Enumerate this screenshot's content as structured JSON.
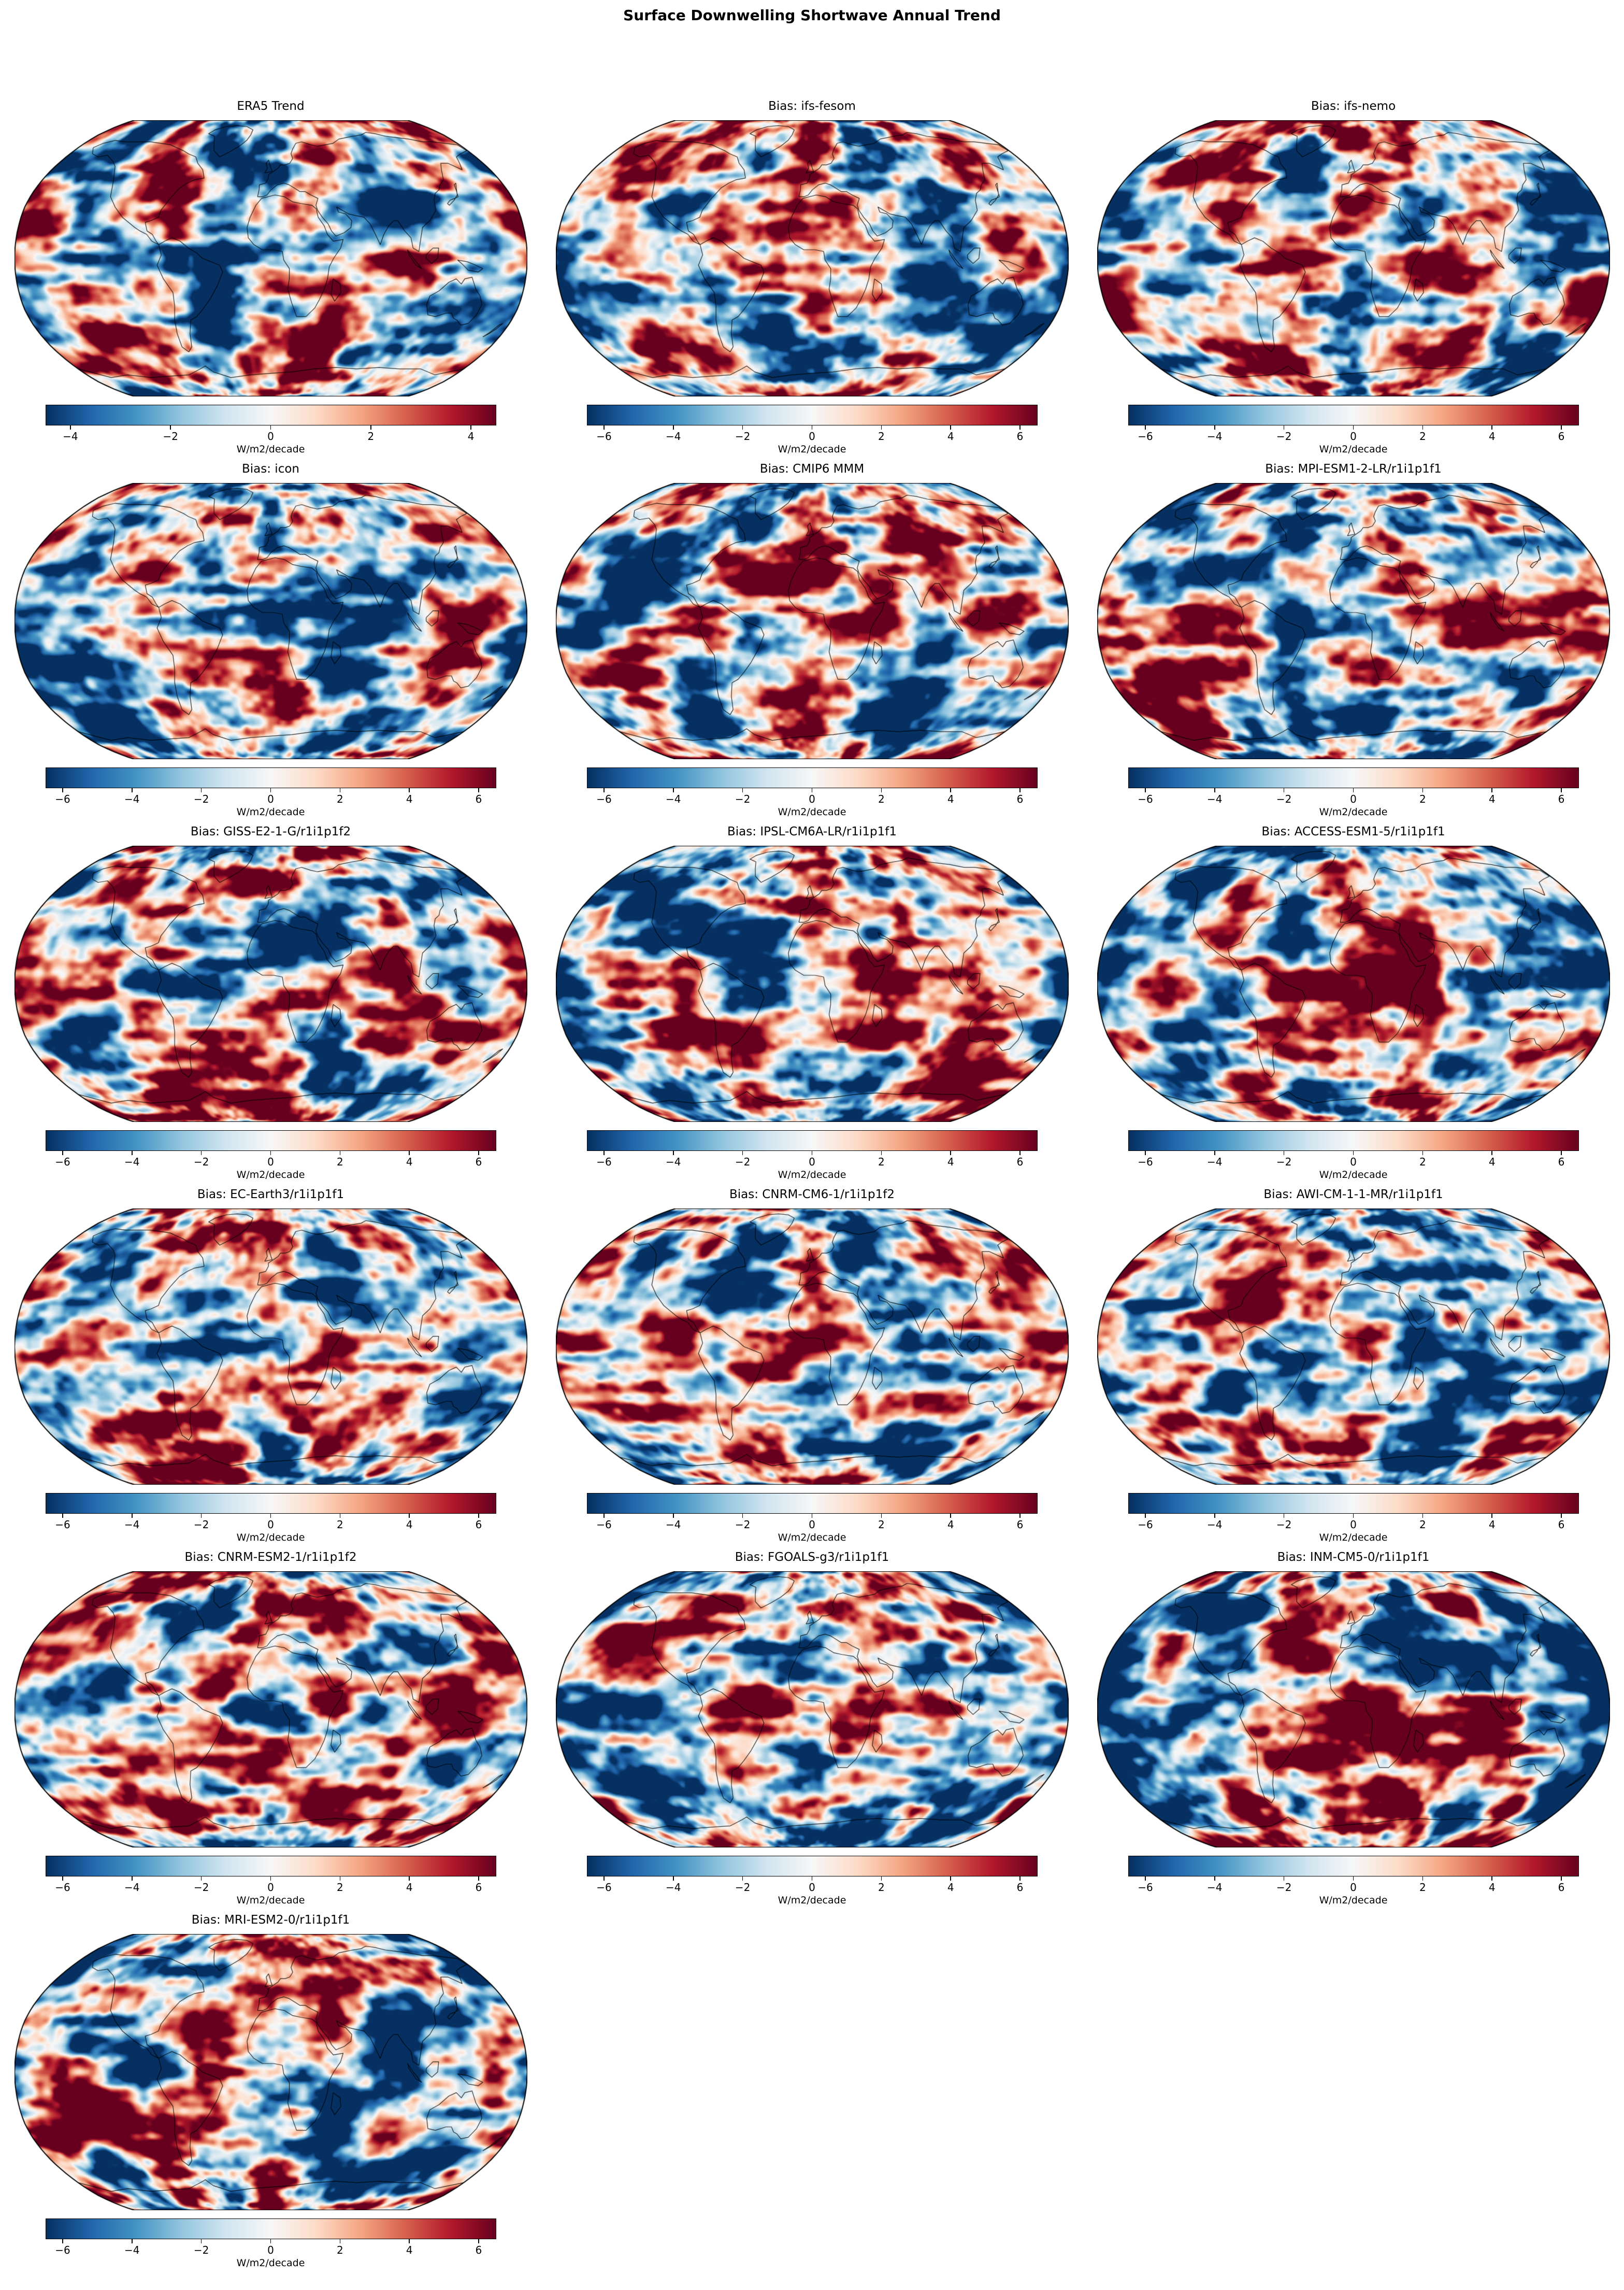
{
  "figure": {
    "title": "Surface Downwelling Shortwave Annual Trend"
  },
  "colorbar": {
    "label": "W/m2/decade",
    "colormap": "RdBu_r",
    "stops": [
      "#053061",
      "#2166ac",
      "#4393c3",
      "#92c5de",
      "#d1e5f0",
      "#f7f7f7",
      "#fddbc7",
      "#f4a582",
      "#d6604d",
      "#b2182b",
      "#67001f"
    ]
  },
  "chart_data": {
    "type": "heatmap",
    "subtype": "global-map-small-multiples",
    "projection": "Robinson",
    "title": "Surface Downwelling Shortwave Annual Trend",
    "units": "W/m2/decade",
    "colormap": "RdBu_r",
    "grid": {
      "rows": 6,
      "cols": 3,
      "panels_in_last_row": 1
    },
    "legend_position": "below-each-panel",
    "panels": [
      {
        "title": "ERA5 Trend",
        "vmin": -4.5,
        "vmax": 4.5,
        "ticks": [
          -4,
          -2,
          0,
          2,
          4
        ],
        "tick_labels": [
          "−4",
          "−2",
          "0",
          "2",
          "4"
        ]
      },
      {
        "title": "Bias: ifs-fesom",
        "vmin": -6.5,
        "vmax": 6.5,
        "ticks": [
          -6,
          -4,
          -2,
          0,
          2,
          4,
          6
        ],
        "tick_labels": [
          "−6",
          "−4",
          "−2",
          "0",
          "2",
          "4",
          "6"
        ]
      },
      {
        "title": "Bias: ifs-nemo",
        "vmin": -6.5,
        "vmax": 6.5,
        "ticks": [
          -6,
          -4,
          -2,
          0,
          2,
          4,
          6
        ],
        "tick_labels": [
          "−6",
          "−4",
          "−2",
          "0",
          "2",
          "4",
          "6"
        ]
      },
      {
        "title": "Bias: icon",
        "vmin": -6.5,
        "vmax": 6.5,
        "ticks": [
          -6,
          -4,
          -2,
          0,
          2,
          4,
          6
        ],
        "tick_labels": [
          "−6",
          "−4",
          "−2",
          "0",
          "2",
          "4",
          "6"
        ]
      },
      {
        "title": "Bias: CMIP6 MMM",
        "vmin": -6.5,
        "vmax": 6.5,
        "ticks": [
          -6,
          -4,
          -2,
          0,
          2,
          4,
          6
        ],
        "tick_labels": [
          "−6",
          "−4",
          "−2",
          "0",
          "2",
          "4",
          "6"
        ]
      },
      {
        "title": "Bias: MPI-ESM1-2-LR/r1i1p1f1",
        "vmin": -6.5,
        "vmax": 6.5,
        "ticks": [
          -6,
          -4,
          -2,
          0,
          2,
          4,
          6
        ],
        "tick_labels": [
          "−6",
          "−4",
          "−2",
          "0",
          "2",
          "4",
          "6"
        ]
      },
      {
        "title": "Bias: GISS-E2-1-G/r1i1p1f2",
        "vmin": -6.5,
        "vmax": 6.5,
        "ticks": [
          -6,
          -4,
          -2,
          0,
          2,
          4,
          6
        ],
        "tick_labels": [
          "−6",
          "−4",
          "−2",
          "0",
          "2",
          "4",
          "6"
        ]
      },
      {
        "title": "Bias: IPSL-CM6A-LR/r1i1p1f1",
        "vmin": -6.5,
        "vmax": 6.5,
        "ticks": [
          -6,
          -4,
          -2,
          0,
          2,
          4,
          6
        ],
        "tick_labels": [
          "−6",
          "−4",
          "−2",
          "0",
          "2",
          "4",
          "6"
        ]
      },
      {
        "title": "Bias: ACCESS-ESM1-5/r1i1p1f1",
        "vmin": -6.5,
        "vmax": 6.5,
        "ticks": [
          -6,
          -4,
          -2,
          0,
          2,
          4,
          6
        ],
        "tick_labels": [
          "−6",
          "−4",
          "−2",
          "0",
          "2",
          "4",
          "6"
        ]
      },
      {
        "title": "Bias: EC-Earth3/r1i1p1f1",
        "vmin": -6.5,
        "vmax": 6.5,
        "ticks": [
          -6,
          -4,
          -2,
          0,
          2,
          4,
          6
        ],
        "tick_labels": [
          "−6",
          "−4",
          "−2",
          "0",
          "2",
          "4",
          "6"
        ]
      },
      {
        "title": "Bias: CNRM-CM6-1/r1i1p1f2",
        "vmin": -6.5,
        "vmax": 6.5,
        "ticks": [
          -6,
          -4,
          -2,
          0,
          2,
          4,
          6
        ],
        "tick_labels": [
          "−6",
          "−4",
          "−2",
          "0",
          "2",
          "4",
          "6"
        ]
      },
      {
        "title": "Bias: AWI-CM-1-1-MR/r1i1p1f1",
        "vmin": -6.5,
        "vmax": 6.5,
        "ticks": [
          -6,
          -4,
          -2,
          0,
          2,
          4,
          6
        ],
        "tick_labels": [
          "−6",
          "−4",
          "−2",
          "0",
          "2",
          "4",
          "6"
        ]
      },
      {
        "title": "Bias: CNRM-ESM2-1/r1i1p1f2",
        "vmin": -6.5,
        "vmax": 6.5,
        "ticks": [
          -6,
          -4,
          -2,
          0,
          2,
          4,
          6
        ],
        "tick_labels": [
          "−6",
          "−4",
          "−2",
          "0",
          "2",
          "4",
          "6"
        ]
      },
      {
        "title": "Bias: FGOALS-g3/r1i1p1f1",
        "vmin": -6.5,
        "vmax": 6.5,
        "ticks": [
          -6,
          -4,
          -2,
          0,
          2,
          4,
          6
        ],
        "tick_labels": [
          "−6",
          "−4",
          "−2",
          "0",
          "2",
          "4",
          "6"
        ]
      },
      {
        "title": "Bias: INM-CM5-0/r1i1p1f1",
        "vmin": -6.5,
        "vmax": 6.5,
        "ticks": [
          -6,
          -4,
          -2,
          0,
          2,
          4,
          6
        ],
        "tick_labels": [
          "−6",
          "−4",
          "−2",
          "0",
          "2",
          "4",
          "6"
        ]
      },
      {
        "title": "Bias: MRI-ESM2-0/r1i1p1f1",
        "vmin": -6.5,
        "vmax": 6.5,
        "ticks": [
          -6,
          -4,
          -2,
          0,
          2,
          4,
          6
        ],
        "tick_labels": [
          "−6",
          "−4",
          "−2",
          "0",
          "2",
          "4",
          "6"
        ]
      }
    ],
    "notes": "Each panel is a filled global field on a Robinson projection with coastlines: blue = negative, red = positive (W/m2/decade). First panel shows the ERA5 observed trend (colorbar ±4.5); the other 15 panels show model bias patterns (colorbar ±6.5)."
  }
}
